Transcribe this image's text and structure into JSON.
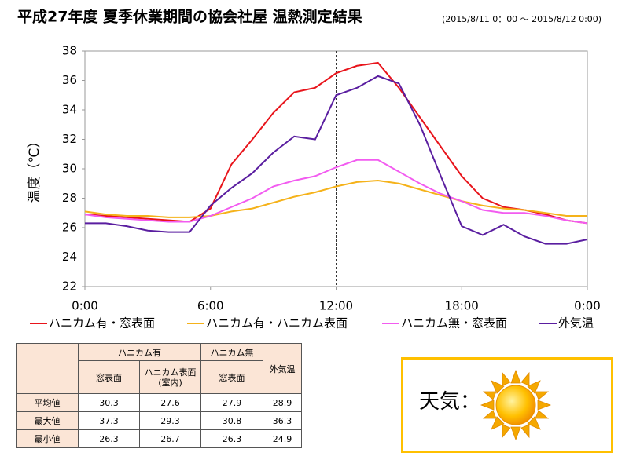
{
  "chart_data": {
    "type": "line",
    "title": "平成27年度 夏季休業期間の協会社屋 温熱測定結果",
    "subtitle": "(2015/8/11 0：00 ～ 2015/8/12 0:00)",
    "ylabel": "温度（℃）",
    "x": [
      0,
      1,
      2,
      3,
      4,
      5,
      6,
      7,
      8,
      9,
      10,
      11,
      12,
      13,
      14,
      15,
      16,
      17,
      18,
      19,
      20,
      21,
      22,
      23,
      24
    ],
    "xlim": [
      0,
      24
    ],
    "xticks": [
      {
        "value": 0,
        "label": "0:00"
      },
      {
        "value": 6,
        "label": "6:00"
      },
      {
        "value": 12,
        "label": "12:00"
      },
      {
        "value": 18,
        "label": "18:00"
      },
      {
        "value": 24,
        "label": "0:00"
      }
    ],
    "ylim": [
      22,
      38
    ],
    "yticks": [
      22,
      24,
      26,
      28,
      30,
      32,
      34,
      36,
      38
    ],
    "vline": 12,
    "series": [
      {
        "name": "ハニカム有・窓表面",
        "color": "#e8141b",
        "values": [
          26.9,
          26.8,
          26.7,
          26.6,
          26.5,
          26.4,
          27.3,
          30.3,
          32,
          33.8,
          35.2,
          35.5,
          36.5,
          37,
          37.2,
          35.5,
          33.5,
          31.5,
          29.5,
          28,
          27.4,
          27.2,
          26.9,
          26.5,
          26.3
        ]
      },
      {
        "name": "ハニカム有・ハニカム表面",
        "color": "#f5b21a",
        "values": [
          27.1,
          26.9,
          26.8,
          26.8,
          26.7,
          26.7,
          26.8,
          27.1,
          27.3,
          27.7,
          28.1,
          28.4,
          28.8,
          29.1,
          29.2,
          29,
          28.6,
          28.2,
          27.8,
          27.5,
          27.3,
          27.2,
          27,
          26.8,
          26.8
        ]
      },
      {
        "name": "ハニカム無・窓表面",
        "color": "#f25cf0",
        "values": [
          26.9,
          26.7,
          26.6,
          26.5,
          26.4,
          26.4,
          26.8,
          27.4,
          28,
          28.8,
          29.2,
          29.5,
          30.1,
          30.6,
          30.6,
          29.8,
          29,
          28.3,
          27.8,
          27.2,
          27,
          27,
          26.8,
          26.5,
          26.3
        ]
      },
      {
        "name": "外気温",
        "color": "#5a1ea0",
        "values": [
          26.3,
          26.3,
          26.1,
          25.8,
          25.7,
          25.7,
          27.5,
          28.7,
          29.7,
          31.1,
          32.2,
          32,
          35,
          35.5,
          36.3,
          35.8,
          33,
          29.5,
          26.1,
          25.5,
          26.2,
          25.4,
          24.9,
          24.9,
          25.2
        ]
      }
    ]
  },
  "table": {
    "groups": [
      "ハニカム有",
      "ハニカム無",
      "外気温"
    ],
    "subheaders": [
      "窓表面",
      "ハニカム表面\n(室内)",
      "窓表面"
    ],
    "rows": [
      {
        "label": "平均値",
        "values": [
          30.3,
          27.6,
          27.9,
          28.9
        ]
      },
      {
        "label": "最大値",
        "values": [
          37.3,
          29.3,
          30.8,
          36.3
        ]
      },
      {
        "label": "最小値",
        "values": [
          26.3,
          26.7,
          26.3,
          24.9
        ]
      }
    ]
  },
  "weather": {
    "label": "天気："
  }
}
